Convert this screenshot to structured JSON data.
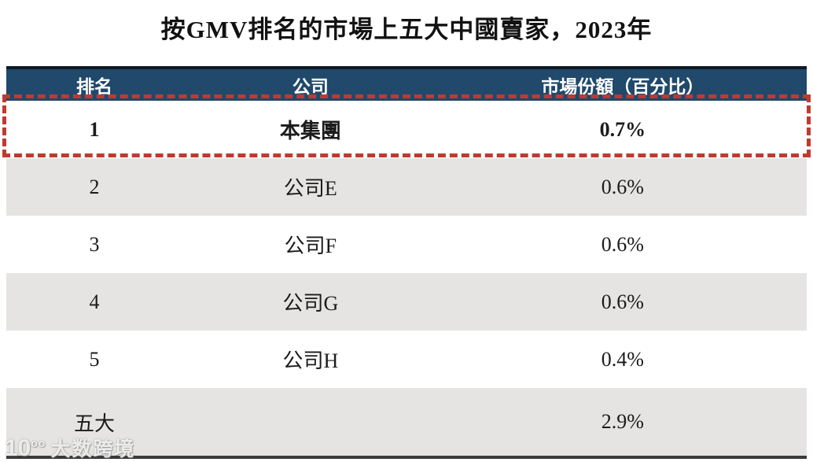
{
  "title": "按GMV排名的市場上五大中國賣家，2023年",
  "table": {
    "columns": {
      "rank": "排名",
      "company": "公司",
      "share": "市場份額（百分比）"
    },
    "rows": [
      {
        "rank": "1",
        "company": "本集團",
        "share": "0.7%",
        "highlighted": true
      },
      {
        "rank": "2",
        "company": "公司E",
        "share": "0.6%",
        "highlighted": false
      },
      {
        "rank": "3",
        "company": "公司F",
        "share": "0.6%",
        "highlighted": false
      },
      {
        "rank": "4",
        "company": "公司G",
        "share": "0.6%",
        "highlighted": false
      },
      {
        "rank": "5",
        "company": "公司H",
        "share": "0.4%",
        "highlighted": false
      }
    ],
    "total": {
      "label": "五大",
      "share": "2.9%"
    }
  },
  "watermark": {
    "logo_main": "10",
    "logo_sup": "oo",
    "text": "大数跨境"
  },
  "colors": {
    "header_bg": "#20496b",
    "header_text": "#ffffff",
    "highlight_border": "#bf3a30",
    "row_alt_bg": "#e5e4e2",
    "bottom_border": "#3a3a3a"
  }
}
